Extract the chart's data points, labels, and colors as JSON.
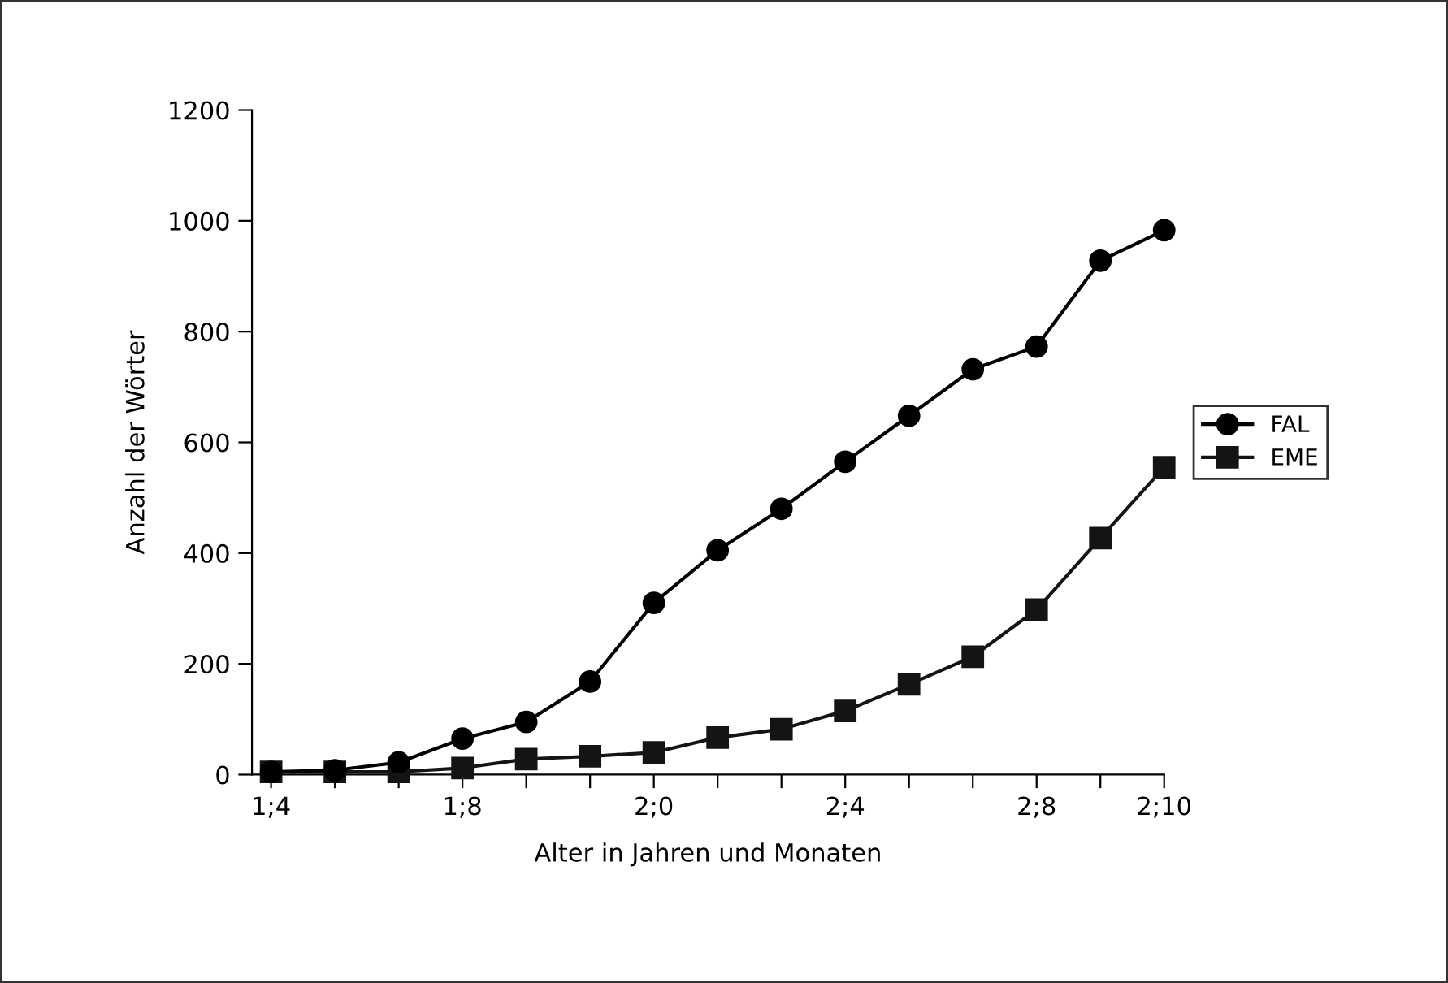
{
  "chart_data": {
    "type": "line",
    "xlabel": "Alter in Jahren und Monaten",
    "ylabel": "Anzahl der Wörter",
    "categories": [
      "1;4",
      null,
      null,
      "1;8",
      null,
      null,
      "2;0",
      null,
      null,
      "2;4",
      null,
      null,
      "2;8",
      null,
      "2;10"
    ],
    "series": [
      {
        "name": "FAL",
        "color": "#000000",
        "marker": "circle",
        "values": [
          5,
          8,
          22,
          65,
          95,
          168,
          310,
          405,
          480,
          565,
          648,
          732,
          773,
          928,
          983
        ]
      },
      {
        "name": "EME",
        "color": "#141414",
        "marker": "square",
        "values": [
          5,
          5,
          5,
          12,
          28,
          33,
          40,
          67,
          82,
          115,
          163,
          213,
          298,
          427,
          555
        ]
      }
    ],
    "ylim": [
      0,
      1200
    ],
    "yticks": [
      0,
      200,
      400,
      600,
      800,
      1000,
      1200
    ],
    "grid": false,
    "legend": "right",
    "line_style": "solid"
  }
}
